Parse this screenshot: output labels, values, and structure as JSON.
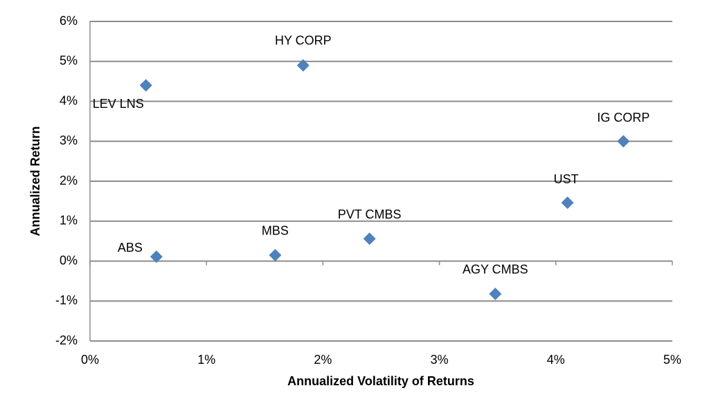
{
  "chart_data": {
    "type": "scatter",
    "x_label": "Annualized  Volatility  of Returns",
    "y_label": "Annualized  Return",
    "point_labels": [
      "LEV LNS",
      "HY CORP",
      "IG CORP",
      "UST",
      "PVT CMBS",
      "MBS",
      "ABS",
      "AGY CMBS"
    ],
    "x": [
      0.48,
      1.83,
      4.58,
      4.1,
      2.4,
      1.59,
      0.57,
      3.48
    ],
    "values": [
      4.4,
      4.9,
      3.0,
      1.46,
      0.56,
      0.15,
      0.11,
      -0.82
    ],
    "color": "#4f81bd",
    "xlim": [
      0,
      5
    ],
    "xticks": [
      {
        "value": 0,
        "label": "0%"
      },
      {
        "value": 1,
        "label": "1%"
      },
      {
        "value": 2,
        "label": "2%"
      },
      {
        "value": 3,
        "label": "3%"
      },
      {
        "value": 4,
        "label": "4%"
      },
      {
        "value": 5,
        "label": "5%"
      }
    ],
    "ylim": [
      -2,
      6
    ],
    "yticks": [
      {
        "value": -2,
        "label": "-2%"
      },
      {
        "value": -1,
        "label": "-1%"
      },
      {
        "value": 0,
        "label": "0%"
      },
      {
        "value": 1,
        "label": "1%"
      },
      {
        "value": 2,
        "label": "2%"
      },
      {
        "value": 3,
        "label": "3%"
      },
      {
        "value": 4,
        "label": "4%"
      },
      {
        "value": 5,
        "label": "5%"
      },
      {
        "value": 6,
        "label": "6%"
      }
    ],
    "grid": true
  }
}
